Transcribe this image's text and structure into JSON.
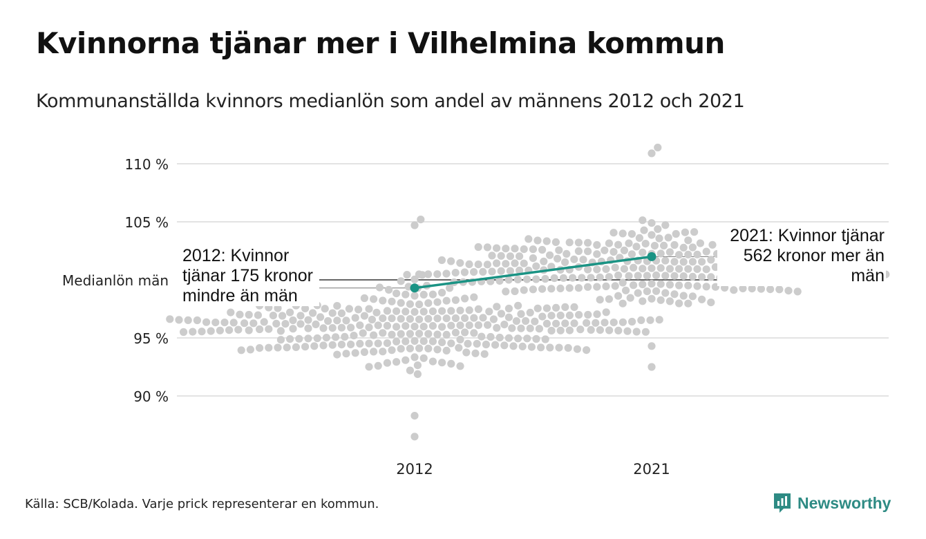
{
  "title": "Kvinnorna tjänar mer i Vilhelmina kommun",
  "subtitle": "Kommunanställda kvinnors medianlön som andel av männens 2012 och 2021",
  "source": "Källa: SCB/Kolada. Varje prick representerar en kommun.",
  "brand": {
    "name": "Newsworthy",
    "color": "#2e8b84"
  },
  "colors": {
    "dots": "#cccccc",
    "highlight": "#1a9384",
    "grid": "#e3e3e3",
    "reference": "#333333"
  },
  "chart_data": {
    "type": "scatter",
    "subtype": "beeswarm",
    "categories": [
      "2012",
      "2021"
    ],
    "y_ticks": [
      {
        "value": 110,
        "label": "110 %"
      },
      {
        "value": 105,
        "label": "105 %"
      },
      {
        "value": 95,
        "label": "95 %"
      },
      {
        "value": 90,
        "label": "90 %"
      }
    ],
    "ylim": [
      86,
      111.5
    ],
    "reference_line": {
      "value": 100,
      "label": "Medianlön män"
    },
    "highlight": {
      "values": [
        99.3,
        102.0
      ],
      "annotations": [
        "2012: Kvinnor tjänar 175 kronor mindre än män",
        "2021: Kvinnor tjänar 562 kronor mer än män"
      ]
    },
    "distributions": [
      {
        "category": "2012",
        "count": 290,
        "min": 86.5,
        "max": 105.2,
        "median": 96.0
      },
      {
        "category": "2021",
        "count": 290,
        "min": 92.5,
        "max": 111.4,
        "median": 101.0
      }
    ],
    "grid": true
  }
}
